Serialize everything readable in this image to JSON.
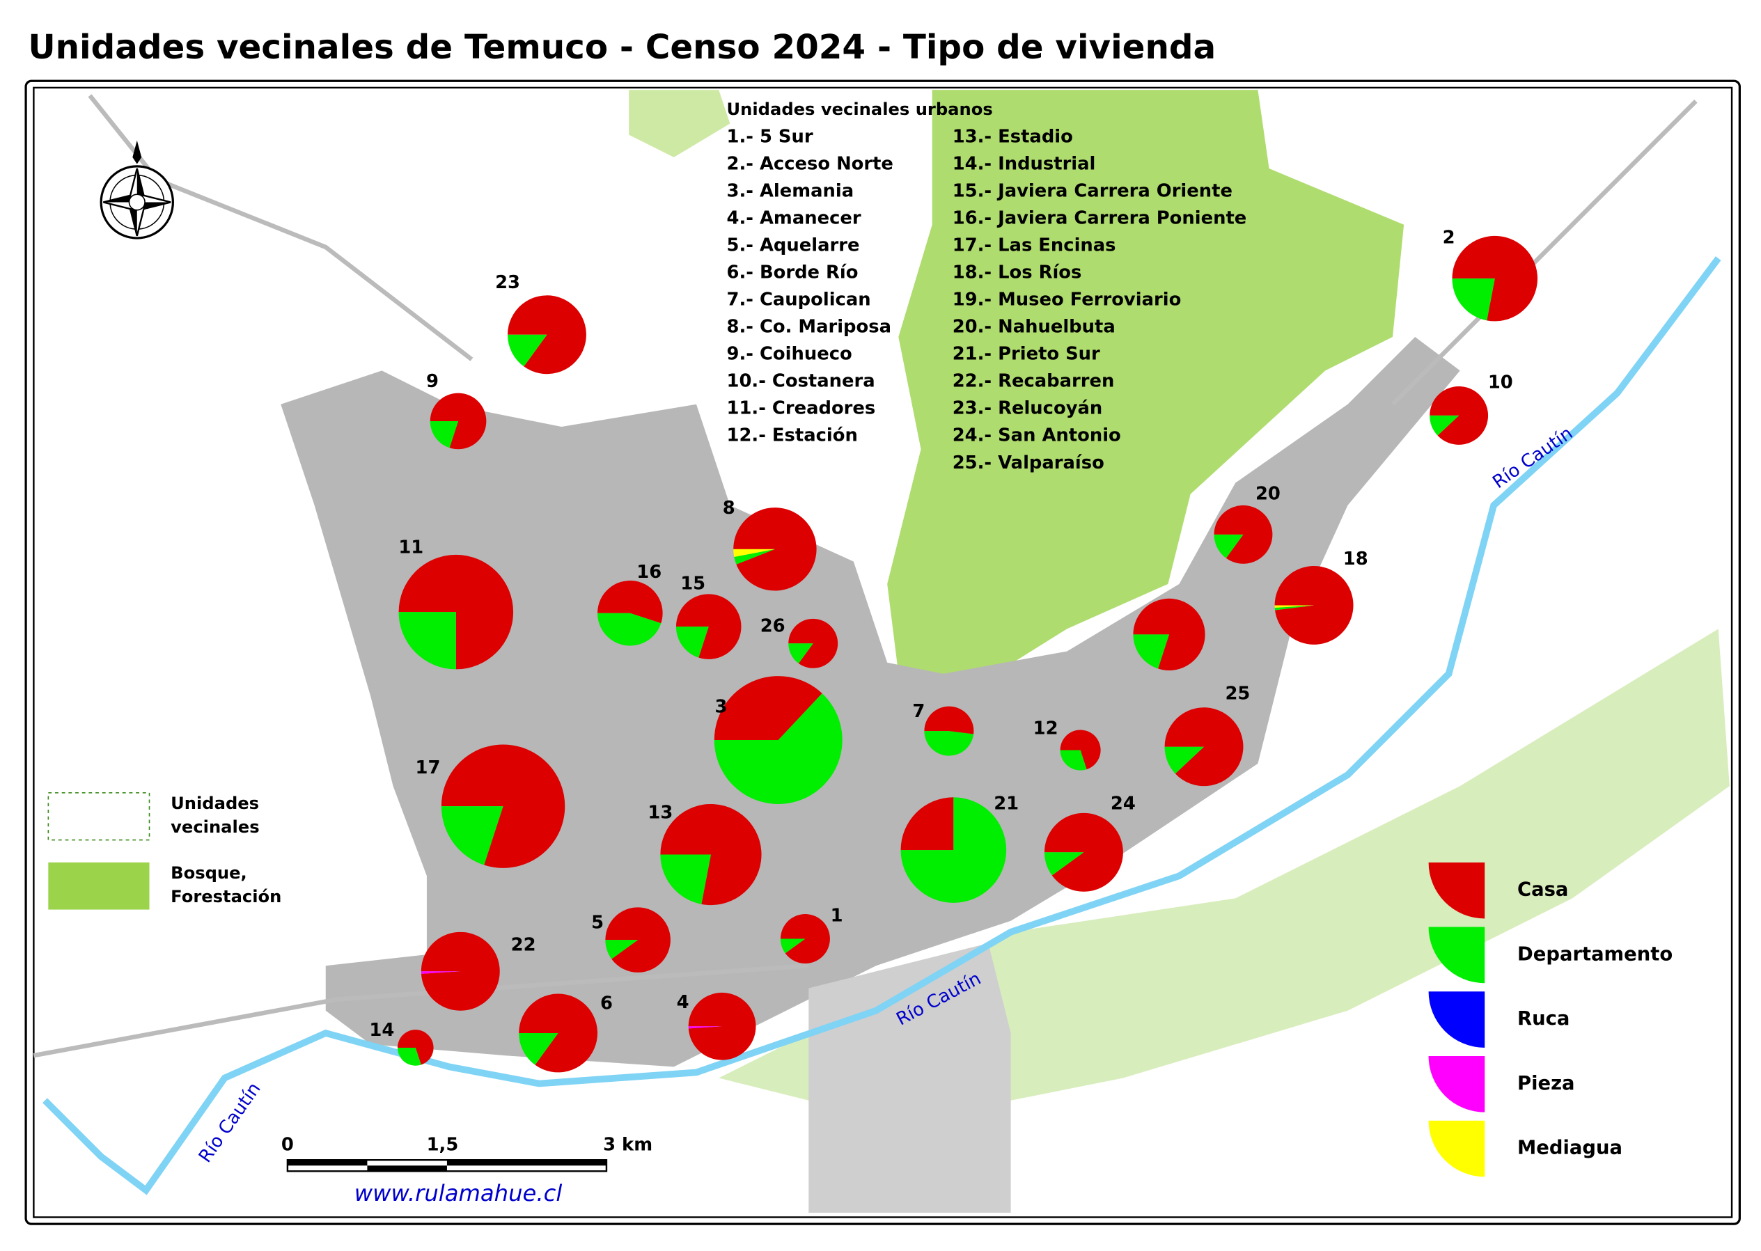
{
  "title": "Unidades vecinales de Temuco - Censo 2024 - Tipo de vivienda",
  "units_list": {
    "heading": "Unidades vecinales urbanos",
    "items": [
      "1.- 5 Sur",
      "2.- Acceso Norte",
      "3.- Alemania",
      "4.- Amanecer",
      "5.- Aquelarre",
      "6.- Borde Río",
      "7.- Caupolican",
      "8.- Co. Mariposa",
      "9.- Coihueco",
      "10.- Costanera",
      "11.- Creadores",
      "12.- Estación",
      "13.- Estadio",
      "14.- Industrial",
      "15.- Javiera Carrera Oriente",
      "16.- Javiera Carrera Poniente",
      "17.- Las Encinas",
      "18.- Los Ríos",
      "19.- Museo Ferroviario",
      "20.- Nahuelbuta",
      "21.- Prieto Sur",
      "22.- Recabarren",
      "23.- Relucoyán",
      "24.- San Antonio",
      "25.- Valparaíso"
    ]
  },
  "map_legend": {
    "units": [
      "Unidades",
      "vecinales"
    ],
    "forest": [
      "Bosque,",
      "Forestación"
    ]
  },
  "housing_types": [
    {
      "name": "Casa",
      "color": "#dd0000"
    },
    {
      "name": "Departamento",
      "color": "#00ee00"
    },
    {
      "name": "Ruca",
      "color": "#0000ff"
    },
    {
      "name": "Pieza",
      "color": "#ff00ff"
    },
    {
      "name": "Mediagua",
      "color": "#ffff00"
    }
  ],
  "pies": [
    {
      "label": "23",
      "values": [
        85,
        15,
        0,
        0,
        0
      ]
    },
    {
      "label": "9",
      "values": [
        80,
        20,
        0,
        0,
        0
      ]
    },
    {
      "label": "2",
      "values": [
        78,
        22,
        0,
        0,
        0
      ]
    },
    {
      "label": "10",
      "values": [
        88,
        12,
        0,
        0,
        0
      ]
    },
    {
      "label": "20",
      "values": [
        85,
        15,
        0,
        0,
        0
      ]
    },
    {
      "label": "8",
      "values": [
        94,
        3,
        0,
        0,
        3
      ]
    },
    {
      "label": "11",
      "values": [
        75,
        25,
        0,
        0,
        0
      ]
    },
    {
      "label": "16",
      "values": [
        55,
        45,
        0,
        0,
        0
      ]
    },
    {
      "label": "15",
      "values": [
        80,
        20,
        0,
        0,
        0
      ]
    },
    {
      "label": "26",
      "values": [
        85,
        15,
        0,
        0,
        0
      ]
    },
    {
      "label": "18",
      "values": [
        98,
        1,
        0,
        0,
        1
      ]
    },
    {
      "label": null,
      "values": [
        80,
        20,
        0,
        0,
        0
      ]
    },
    {
      "label": "3",
      "values": [
        37,
        63,
        0,
        0,
        0
      ]
    },
    {
      "label": "7",
      "values": [
        52,
        48,
        0,
        0,
        0
      ]
    },
    {
      "label": "12",
      "values": [
        70,
        30,
        0,
        0,
        0
      ]
    },
    {
      "label": "25",
      "values": [
        88,
        12,
        0,
        0,
        0
      ]
    },
    {
      "label": "17",
      "values": [
        80,
        20,
        0,
        0,
        0
      ]
    },
    {
      "label": "13",
      "values": [
        78,
        22,
        0,
        0,
        0
      ]
    },
    {
      "label": "21",
      "values": [
        25,
        75,
        0,
        0,
        0
      ]
    },
    {
      "label": "24",
      "values": [
        90,
        10,
        0,
        0,
        0
      ]
    },
    {
      "label": "1",
      "values": [
        90,
        10,
        0,
        0,
        0
      ]
    },
    {
      "label": "5",
      "values": [
        90,
        10,
        0,
        0,
        0
      ]
    },
    {
      "label": "22",
      "values": [
        99,
        0,
        0,
        1,
        0
      ]
    },
    {
      "label": "6",
      "values": [
        85,
        15,
        0,
        0,
        0
      ]
    },
    {
      "label": "4",
      "values": [
        99,
        0,
        0,
        1,
        0
      ]
    },
    {
      "label": "14",
      "values": [
        70,
        30,
        0,
        0,
        0
      ]
    }
  ],
  "scale_bar": [
    "0",
    "1,5",
    "3 km"
  ],
  "river_label": "Río Cautín",
  "website": "www.rulamahue.cl"
}
